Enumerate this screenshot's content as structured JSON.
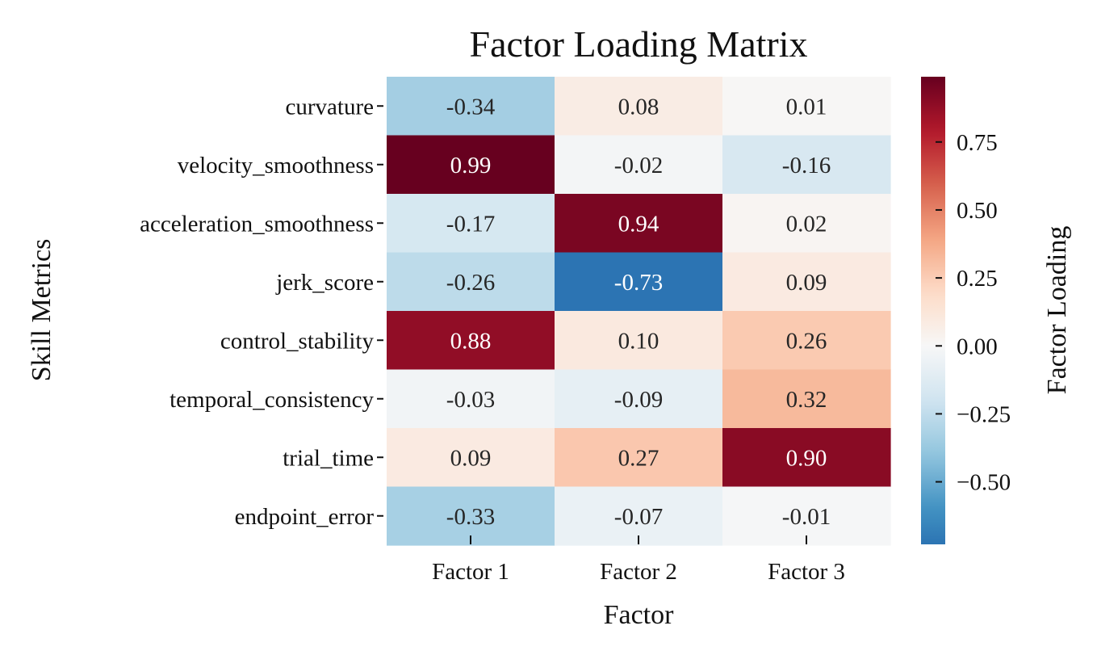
{
  "chart_data": {
    "type": "heatmap",
    "title": "Factor Loading Matrix",
    "xlabel": "Factor",
    "ylabel": "Skill Metrics",
    "colorbar_label": "Factor Loading",
    "columns": [
      "Factor 1",
      "Factor 2",
      "Factor 3"
    ],
    "rows": [
      "curvature",
      "velocity_smoothness",
      "acceleration_smoothness",
      "jerk_score",
      "control_stability",
      "temporal_consistency",
      "trial_time",
      "endpoint_error"
    ],
    "values": [
      [
        -0.34,
        0.08,
        0.01
      ],
      [
        0.99,
        -0.02,
        -0.16
      ],
      [
        -0.17,
        0.94,
        0.02
      ],
      [
        -0.26,
        -0.73,
        0.09
      ],
      [
        0.88,
        0.1,
        0.26
      ],
      [
        -0.03,
        -0.09,
        0.32
      ],
      [
        0.09,
        0.27,
        0.9
      ],
      [
        -0.33,
        -0.07,
        -0.01
      ]
    ],
    "cell_labels": [
      [
        "-0.34",
        "0.08",
        "0.01"
      ],
      [
        "0.99",
        "-0.02",
        "-0.16"
      ],
      [
        "-0.17",
        "0.94",
        "0.02"
      ],
      [
        "-0.26",
        "-0.73",
        "0.09"
      ],
      [
        "0.88",
        "0.10",
        "0.26"
      ],
      [
        "-0.03",
        "-0.09",
        "0.32"
      ],
      [
        "0.09",
        "0.27",
        "0.90"
      ],
      [
        "-0.33",
        "-0.07",
        "-0.01"
      ]
    ],
    "colormap": "RdBu_r",
    "color_range": [
      -0.73,
      0.99
    ],
    "colorbar_ticks": [
      0.75,
      0.5,
      0.25,
      0.0,
      -0.25,
      -0.5
    ],
    "colorbar_tick_labels": [
      "0.75",
      "0.50",
      "0.25",
      "0.00",
      "−0.25",
      "−0.50"
    ],
    "grid": false,
    "legend": "colorbar-right"
  }
}
